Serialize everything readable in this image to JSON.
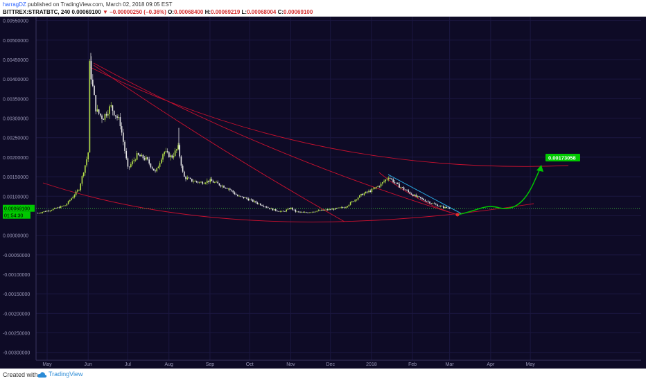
{
  "header": {
    "user": "harragDZ",
    "published": "published on TradingView.com, March 02, 2018 09:05 EST",
    "symbol": "BITTREX:STRATBTC, 240",
    "last": "0.00069100",
    "change": "−0.00000250 (−0.36%)",
    "o_label": "O:",
    "o": "0.00068400",
    "h_label": "H:",
    "h": "0.00069219",
    "l_label": "L:",
    "l": "0.00068004",
    "c_label": "C:",
    "c": "0.00069100"
  },
  "footer": {
    "created": "Created with",
    "brand": "TradingView"
  },
  "colors": {
    "background": "#0e0b26",
    "grid": "#1b1740",
    "candle_up": "#b7e34a",
    "candle_down": "#e8e8e8",
    "trend_red": "#c8102e",
    "trend_blue": "#29a8e0",
    "projection_green": "#00c800",
    "price_line": "#3fbf3f"
  },
  "chart_data": {
    "type": "line",
    "x": [
      "Apr 25",
      "May 05",
      "May 15",
      "May 25",
      "Jun 01",
      "Jun 02",
      "Jun 04",
      "Jun 07",
      "Jun 12",
      "Jun 18",
      "Jun 25",
      "Jul 01",
      "Jul 08",
      "Jul 15",
      "Jul 22",
      "Jul 28",
      "Aug 03",
      "Aug 08",
      "Aug 12",
      "Aug 18",
      "Aug 25",
      "Sep 01",
      "Sep 08",
      "Sep 15",
      "Sep 22",
      "Sep 28",
      "Oct 05",
      "Oct 12",
      "Oct 19",
      "Oct 26",
      "Nov 01",
      "Nov 05",
      "Nov 12",
      "Nov 20",
      "Nov 28",
      "Dec 05",
      "Dec 12",
      "Dec 19",
      "Dec 25",
      "Jan 01",
      "Jan 08",
      "Jan 14",
      "Jan 20",
      "Jan 27",
      "Feb 03",
      "Feb 10",
      "Feb 17",
      "Feb 24",
      "Mar 02"
    ],
    "series": [
      {
        "values": [
          0.00057,
          0.00066,
          0.00077,
          0.00118,
          0.0021,
          0.0044,
          0.0039,
          0.0032,
          0.003,
          0.0033,
          0.0029,
          0.0017,
          0.00205,
          0.00195,
          0.0016,
          0.00215,
          0.002,
          0.00225,
          0.0015,
          0.0014,
          0.00135,
          0.0014,
          0.0013,
          0.0012,
          0.001,
          0.00095,
          0.00085,
          0.00075,
          0.00065,
          0.0006,
          0.0007,
          0.0006,
          0.00058,
          0.00062,
          0.00065,
          0.00068,
          0.00072,
          0.0009,
          0.00105,
          0.00115,
          0.0013,
          0.0015,
          0.0013,
          0.00115,
          0.001,
          0.0009,
          0.0008,
          0.00072,
          0.00069
        ]
      }
    ],
    "annotations": {
      "last_price_label": "0.00069100",
      "countdown_label": "01:54:30",
      "target_label": "0.00173058"
    },
    "x_tick_labels": [
      "May",
      "Jun",
      "Jul",
      "Aug",
      "Sep",
      "Oct",
      "Nov",
      "Dec",
      "2018",
      "Feb",
      "Mar",
      "Apr",
      "May"
    ],
    "y_tick_labels": [
      "0.00550000",
      "0.00500000",
      "0.00450000",
      "0.00400000",
      "0.00350000",
      "0.00300000",
      "0.00250000",
      "0.00200000",
      "0.00150000",
      "0.00100000",
      "0.00050000",
      "0.00000000",
      "-0.00050000",
      "-0.00100000",
      "-0.00150000",
      "-0.00200000",
      "-0.00250000",
      "-0.00300000"
    ],
    "ylim": [
      -0.0032,
      0.0056
    ],
    "grid": true
  }
}
